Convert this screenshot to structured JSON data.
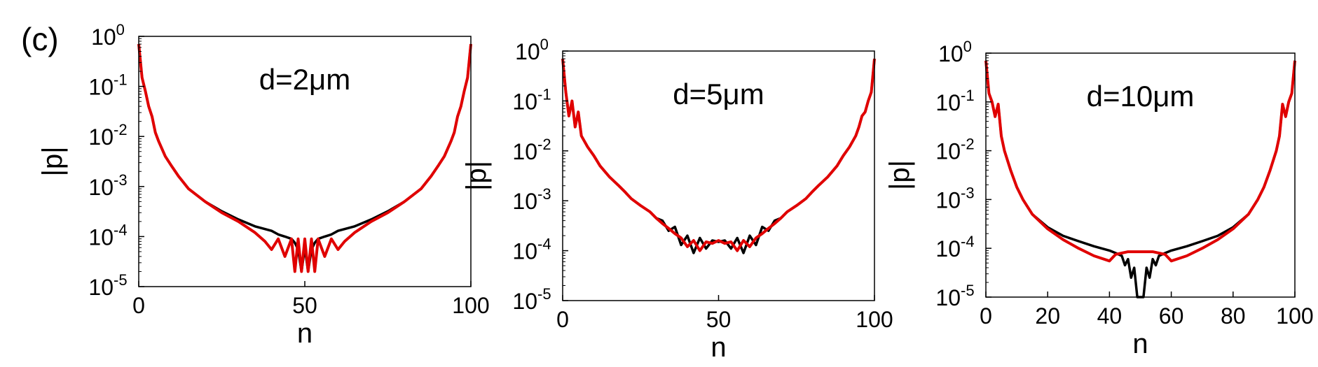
{
  "figure_label": "(c)",
  "chart_data": [
    {
      "type": "line",
      "annotation": "d=2μm",
      "xlabel": "n",
      "ylabel": "|p|",
      "xlim": [
        0,
        100
      ],
      "ylim": [
        1e-05,
        1
      ],
      "yscale": "log",
      "xticks": [
        0,
        50,
        100
      ],
      "xtick_labels": [
        "0",
        "50",
        "100"
      ],
      "yticks": [
        1e-05,
        0.0001,
        0.001,
        0.01,
        0.1,
        1
      ],
      "ytick_labels": [
        [
          "10",
          "-5"
        ],
        [
          "10",
          "-4"
        ],
        [
          "10",
          "-3"
        ],
        [
          "10",
          "-2"
        ],
        [
          "10",
          "-1"
        ],
        [
          "10",
          "0"
        ]
      ],
      "grid": false,
      "series": [
        {
          "color": "#000000",
          "x": [
            0,
            1,
            2,
            3,
            4,
            5,
            6,
            8,
            10,
            12,
            15,
            20,
            25,
            30,
            35,
            40,
            42,
            44,
            46,
            47,
            48,
            49,
            50,
            51,
            52,
            53,
            54,
            56,
            58,
            60,
            65,
            70,
            75,
            80,
            85,
            88,
            90,
            92,
            94,
            95,
            96,
            97,
            98,
            99,
            100
          ],
          "y": [
            0.7,
            0.15,
            0.08,
            0.04,
            0.025,
            0.012,
            0.008,
            0.004,
            0.0025,
            0.0016,
            0.0009,
            0.0005,
            0.00032,
            0.00022,
            0.00016,
            0.00013,
            0.00011,
            0.0001,
            9e-05,
            7.5e-05,
            5.5e-05,
            2e-05,
            6e-05,
            2e-05,
            5.5e-05,
            7.5e-05,
            9e-05,
            0.0001,
            0.00011,
            0.00013,
            0.00016,
            0.00022,
            0.00032,
            0.0005,
            0.0009,
            0.0016,
            0.0025,
            0.004,
            0.008,
            0.012,
            0.025,
            0.04,
            0.08,
            0.15,
            0.7
          ]
        },
        {
          "color": "#e00000",
          "x": [
            0,
            1,
            2,
            3,
            4,
            5,
            6,
            8,
            10,
            12,
            15,
            20,
            25,
            30,
            35,
            38,
            40,
            42,
            44,
            46,
            47,
            48,
            49,
            50,
            51,
            52,
            53,
            54,
            56,
            58,
            60,
            62,
            65,
            70,
            75,
            80,
            85,
            88,
            90,
            92,
            94,
            95,
            96,
            97,
            98,
            99,
            100
          ],
          "y": [
            0.7,
            0.15,
            0.08,
            0.04,
            0.025,
            0.012,
            0.008,
            0.004,
            0.0025,
            0.0016,
            0.0009,
            0.0005,
            0.0003,
            0.0002,
            0.00012,
            8e-05,
            5.5e-05,
            9e-05,
            4e-05,
            9e-05,
            2e-05,
            9e-05,
            2e-05,
            9e-05,
            2e-05,
            9e-05,
            2e-05,
            9e-05,
            4e-05,
            9e-05,
            5.5e-05,
            8e-05,
            0.00012,
            0.0002,
            0.0003,
            0.0005,
            0.0009,
            0.0016,
            0.0025,
            0.004,
            0.008,
            0.012,
            0.025,
            0.04,
            0.08,
            0.15,
            0.7
          ]
        }
      ]
    },
    {
      "type": "line",
      "annotation": "d=5μm",
      "xlabel": "n",
      "ylabel": "|p|",
      "xlim": [
        0,
        100
      ],
      "ylim": [
        1e-05,
        1
      ],
      "yscale": "log",
      "xticks": [
        0,
        50,
        100
      ],
      "xtick_labels": [
        "0",
        "50",
        "100"
      ],
      "yticks": [
        1e-05,
        0.0001,
        0.001,
        0.01,
        0.1,
        1
      ],
      "ytick_labels": [
        [
          "10",
          "-5"
        ],
        [
          "10",
          "-4"
        ],
        [
          "10",
          "-3"
        ],
        [
          "10",
          "-2"
        ],
        [
          "10",
          "-1"
        ],
        [
          "10",
          "0"
        ]
      ],
      "grid": false,
      "series": [
        {
          "color": "#000000",
          "x": [
            0,
            1,
            2,
            3,
            4,
            5,
            6,
            8,
            10,
            12,
            15,
            18,
            20,
            22,
            25,
            28,
            30,
            32,
            34,
            36,
            38,
            40,
            42,
            44,
            46,
            48,
            50,
            52,
            54,
            56,
            58,
            60,
            62,
            64,
            66,
            68,
            70,
            72,
            75,
            78,
            80,
            82,
            85,
            88,
            90,
            92,
            94,
            95,
            96,
            97,
            98,
            99,
            100
          ],
          "y": [
            0.7,
            0.15,
            0.05,
            0.1,
            0.03,
            0.06,
            0.02,
            0.012,
            0.008,
            0.005,
            0.003,
            0.002,
            0.0015,
            0.0011,
            0.0008,
            0.0006,
            0.00045,
            0.0004,
            0.00025,
            0.0003,
            0.00013,
            0.0002,
            9e-05,
            0.00018,
            0.00011,
            0.00016,
            0.00015,
            0.00016,
            0.00011,
            0.00018,
            9e-05,
            0.0002,
            0.00013,
            0.0003,
            0.00025,
            0.0004,
            0.00045,
            0.0006,
            0.0008,
            0.0011,
            0.0015,
            0.002,
            0.003,
            0.005,
            0.008,
            0.012,
            0.02,
            0.03,
            0.05,
            0.06,
            0.1,
            0.15,
            0.7
          ]
        },
        {
          "color": "#e00000",
          "x": [
            0,
            1,
            2,
            3,
            4,
            5,
            6,
            8,
            10,
            12,
            15,
            18,
            20,
            22,
            25,
            28,
            30,
            32,
            34,
            36,
            38,
            40,
            42,
            44,
            46,
            48,
            50,
            52,
            54,
            56,
            58,
            60,
            62,
            64,
            66,
            68,
            70,
            72,
            75,
            78,
            80,
            82,
            85,
            88,
            90,
            92,
            94,
            95,
            96,
            97,
            98,
            99,
            100
          ],
          "y": [
            0.7,
            0.15,
            0.05,
            0.1,
            0.03,
            0.06,
            0.02,
            0.012,
            0.008,
            0.005,
            0.003,
            0.002,
            0.0015,
            0.0011,
            0.0008,
            0.0006,
            0.00045,
            0.00035,
            0.00028,
            0.00022,
            0.00018,
            0.00012,
            0.00016,
            0.0001,
            0.00015,
            0.00014,
            0.00016,
            0.00014,
            0.00015,
            0.0001,
            0.00016,
            0.00012,
            0.00018,
            0.00022,
            0.00028,
            0.00035,
            0.00045,
            0.0006,
            0.0008,
            0.0011,
            0.0015,
            0.002,
            0.003,
            0.005,
            0.008,
            0.012,
            0.02,
            0.03,
            0.05,
            0.06,
            0.1,
            0.15,
            0.7
          ]
        }
      ]
    },
    {
      "type": "line",
      "annotation": "d=10μm",
      "xlabel": "n",
      "ylabel": "|p|",
      "xlim": [
        0,
        100
      ],
      "ylim": [
        1e-05,
        1
      ],
      "yscale": "log",
      "xticks": [
        0,
        20,
        40,
        60,
        80,
        100
      ],
      "xtick_labels": [
        "0",
        "20",
        "40",
        "60",
        "80",
        "100"
      ],
      "yticks": [
        1e-05,
        0.0001,
        0.001,
        0.01,
        0.1,
        1
      ],
      "ytick_labels": [
        [
          "10",
          "-5"
        ],
        [
          "10",
          "-4"
        ],
        [
          "10",
          "-3"
        ],
        [
          "10",
          "-2"
        ],
        [
          "10",
          "-1"
        ],
        [
          "10",
          "0"
        ]
      ],
      "grid": false,
      "series": [
        {
          "color": "#000000",
          "x": [
            0,
            1,
            2,
            3,
            4,
            5,
            6,
            8,
            10,
            12,
            15,
            20,
            25,
            30,
            35,
            40,
            42,
            44,
            45,
            46,
            47,
            48,
            49,
            50,
            51,
            52,
            53,
            54,
            55,
            56,
            58,
            60,
            65,
            70,
            75,
            80,
            85,
            88,
            90,
            92,
            94,
            95,
            96,
            97,
            98,
            99,
            100
          ],
          "y": [
            0.7,
            0.15,
            0.1,
            0.05,
            0.09,
            0.02,
            0.01,
            0.004,
            0.0018,
            0.001,
            0.0005,
            0.00027,
            0.00018,
            0.00014,
            0.00011,
            9e-05,
            8e-05,
            7e-05,
            4.5e-05,
            6e-05,
            2.5e-05,
            4e-05,
            1e-05,
            1e-05,
            1e-05,
            4e-05,
            2.5e-05,
            6e-05,
            4.5e-05,
            7e-05,
            8e-05,
            9e-05,
            0.00011,
            0.00014,
            0.00018,
            0.00027,
            0.0005,
            0.001,
            0.0018,
            0.004,
            0.01,
            0.02,
            0.09,
            0.05,
            0.1,
            0.15,
            0.7
          ]
        },
        {
          "color": "#e00000",
          "x": [
            0,
            1,
            2,
            3,
            4,
            5,
            6,
            8,
            10,
            12,
            15,
            20,
            25,
            30,
            35,
            40,
            42,
            44,
            46,
            48,
            50,
            52,
            54,
            56,
            58,
            60,
            65,
            70,
            75,
            80,
            85,
            88,
            90,
            92,
            94,
            95,
            96,
            97,
            98,
            99,
            100
          ],
          "y": [
            0.7,
            0.15,
            0.1,
            0.05,
            0.09,
            0.02,
            0.01,
            0.004,
            0.0018,
            0.001,
            0.0005,
            0.00025,
            0.00015,
            0.0001,
            7e-05,
            5.5e-05,
            7.5e-05,
            8e-05,
            8.5e-05,
            8.5e-05,
            8.5e-05,
            8.5e-05,
            8.5e-05,
            8e-05,
            7.5e-05,
            5.5e-05,
            7e-05,
            0.0001,
            0.00015,
            0.00025,
            0.0005,
            0.001,
            0.0018,
            0.004,
            0.01,
            0.02,
            0.09,
            0.05,
            0.1,
            0.15,
            0.7
          ]
        }
      ]
    }
  ]
}
